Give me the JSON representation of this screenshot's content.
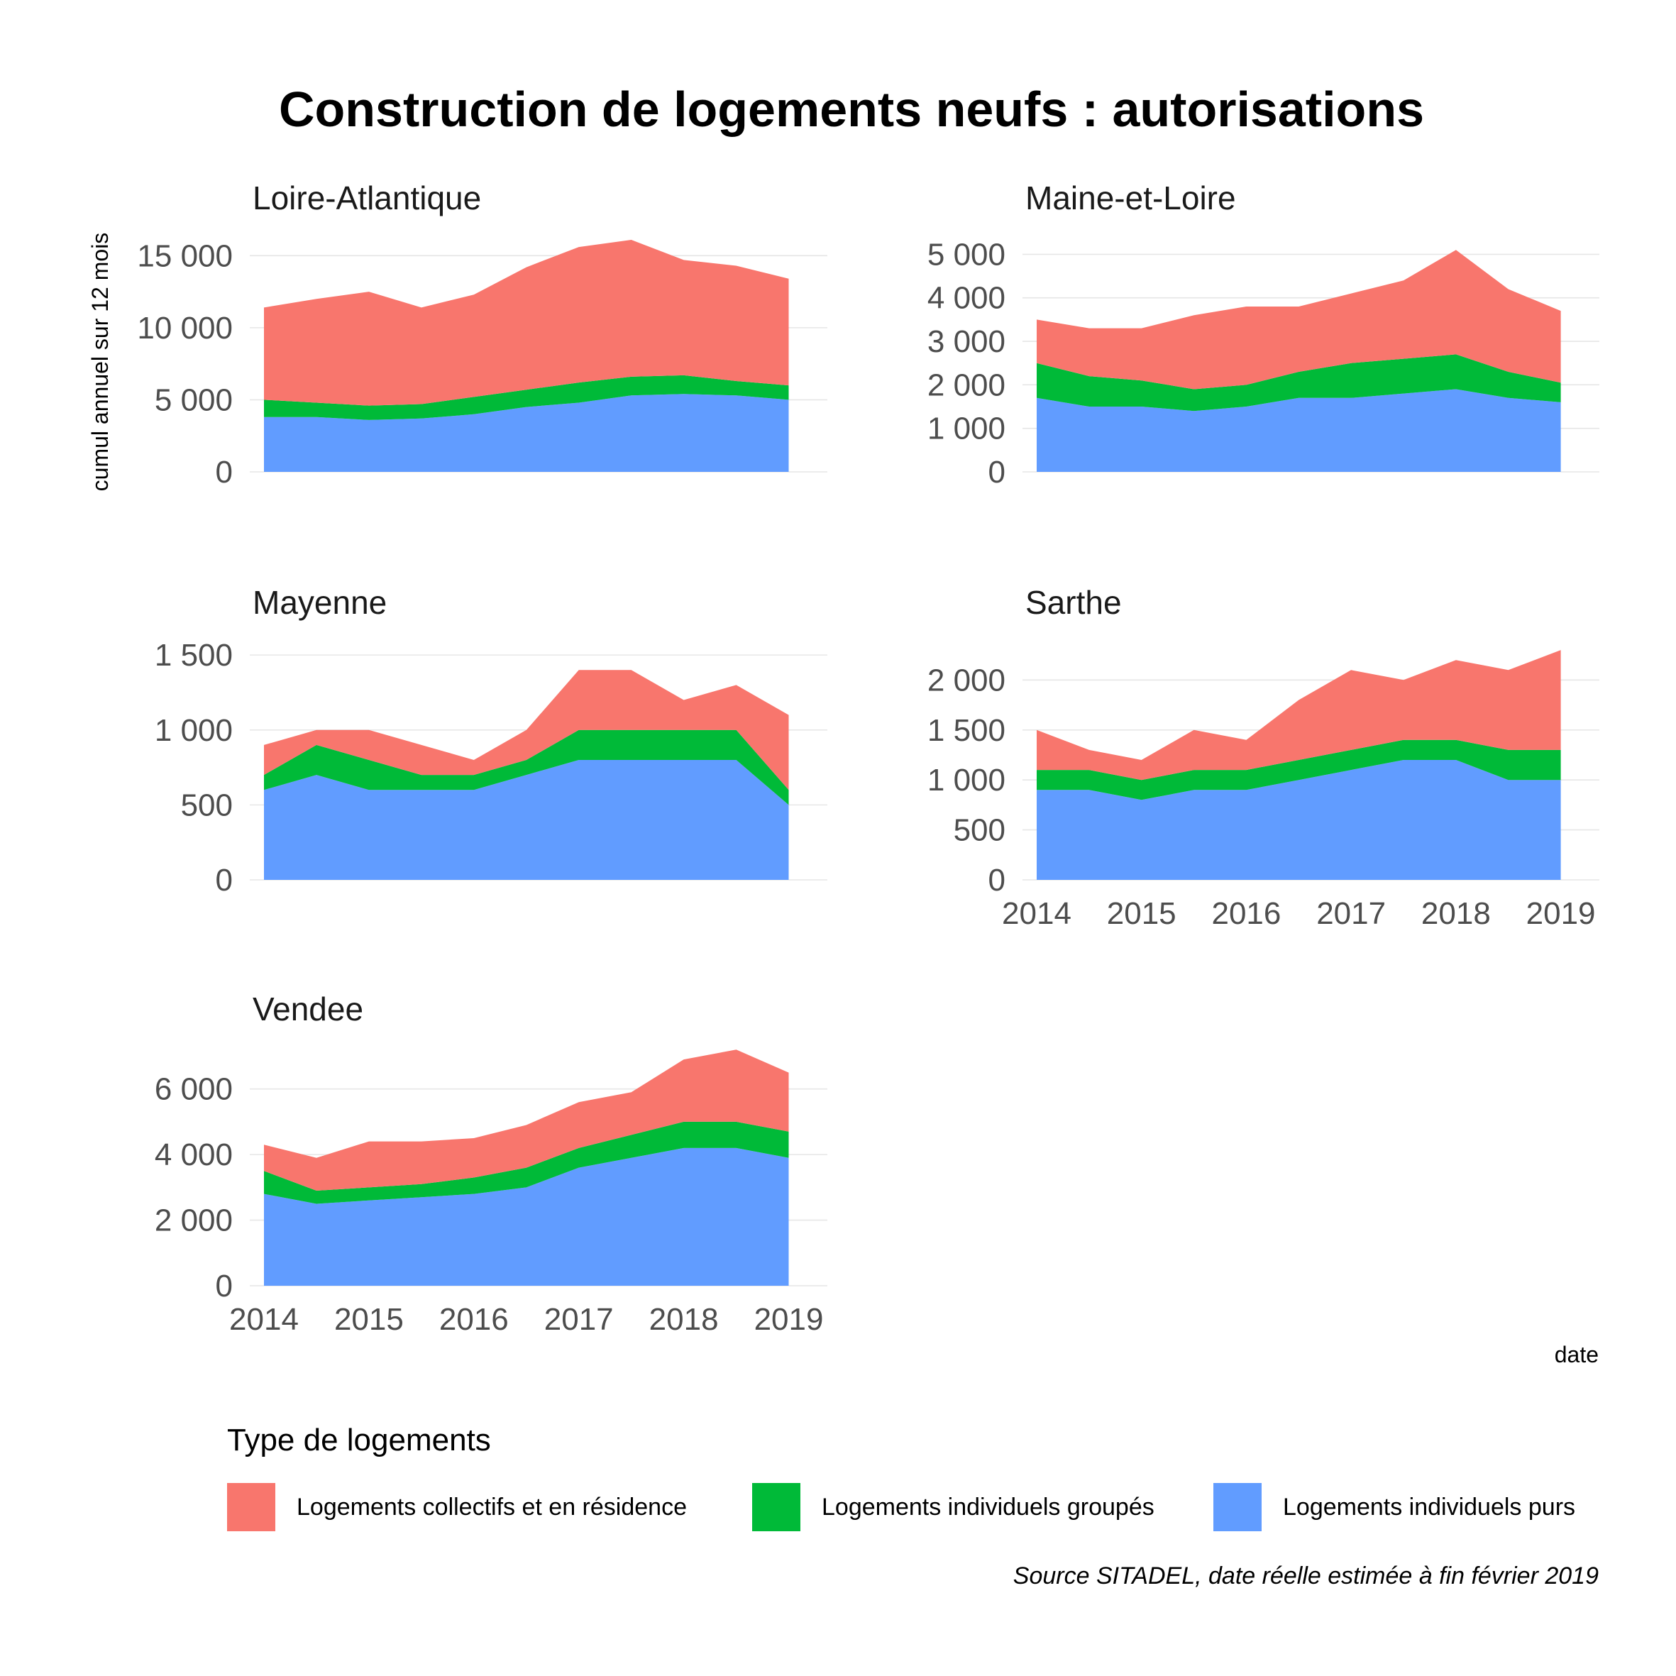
{
  "chart_data": {
    "type": "area",
    "stacked": true,
    "title": "Construction de logements neufs : autorisations",
    "xlabel": "date",
    "ylabel": "cumul annuel sur 12 mois",
    "x_ticks": [
      "2014",
      "2015",
      "2016",
      "2017",
      "2018",
      "2019"
    ],
    "x_range": [
      2014.0,
      2019.1
    ],
    "legend": {
      "title": "Type de logements",
      "position": "bottom",
      "items": [
        {
          "name": "Logements collectifs et en résidence",
          "color": "#F8766D"
        },
        {
          "name": "Logements individuels groupés",
          "color": "#00BA38"
        },
        {
          "name": "Logements individuels purs",
          "color": "#619CFF"
        }
      ]
    },
    "caption": "Source SITADEL, date réelle estimée à fin février 2019",
    "grid": true,
    "panels": [
      {
        "name": "Loire-Atlantique",
        "ylim": [
          0,
          16000
        ],
        "y_ticks": [
          {
            "value": 0,
            "label": "0"
          },
          {
            "value": 5000,
            "label": "5 000"
          },
          {
            "value": 10000,
            "label": "10 000"
          },
          {
            "value": 15000,
            "label": "15 000"
          }
        ],
        "show_x_ticks": false,
        "x": [
          2014.0,
          2014.5,
          2015.0,
          2015.5,
          2016.0,
          2016.5,
          2017.0,
          2017.5,
          2018.0,
          2018.5,
          2019.0
        ],
        "series": [
          {
            "name": "Logements individuels purs",
            "values": [
              3800,
              3800,
              3600,
              3700,
              4000,
              4500,
              4800,
              5300,
              5400,
              5300,
              5000
            ]
          },
          {
            "name": "Logements individuels groupés",
            "values": [
              1200,
              1000,
              1000,
              1000,
              1200,
              1200,
              1400,
              1300,
              1300,
              1000,
              1000
            ]
          },
          {
            "name": "Logements collectifs et en résidence",
            "values": [
              6400,
              7200,
              7900,
              6700,
              7100,
              8500,
              9400,
              9500,
              8000,
              8000,
              7400
            ]
          }
        ]
      },
      {
        "name": "Maine-et-Loire",
        "ylim": [
          0,
          5300
        ],
        "y_ticks": [
          {
            "value": 0,
            "label": "0"
          },
          {
            "value": 1000,
            "label": "1 000"
          },
          {
            "value": 2000,
            "label": "2 000"
          },
          {
            "value": 3000,
            "label": "3 000"
          },
          {
            "value": 4000,
            "label": "4 000"
          },
          {
            "value": 5000,
            "label": "5 000"
          }
        ],
        "show_x_ticks": false,
        "x": [
          2014.0,
          2014.5,
          2015.0,
          2015.5,
          2016.0,
          2016.5,
          2017.0,
          2017.5,
          2018.0,
          2018.5,
          2019.0
        ],
        "series": [
          {
            "name": "Logements individuels purs",
            "values": [
              1700,
              1500,
              1500,
              1400,
              1500,
              1700,
              1700,
              1800,
              1900,
              1700,
              1600
            ]
          },
          {
            "name": "Logements individuels groupés",
            "values": [
              800,
              700,
              600,
              500,
              500,
              600,
              800,
              800,
              800,
              600,
              450
            ]
          },
          {
            "name": "Logements collectifs et en résidence",
            "values": [
              1000,
              1100,
              1200,
              1700,
              1800,
              1500,
              1600,
              1800,
              2400,
              1900,
              1650
            ]
          }
        ]
      },
      {
        "name": "Mayenne",
        "ylim": [
          0,
          1600
        ],
        "y_ticks": [
          {
            "value": 0,
            "label": "0"
          },
          {
            "value": 500,
            "label": "500"
          },
          {
            "value": 1000,
            "label": "1 000"
          },
          {
            "value": 1500,
            "label": "1 500"
          }
        ],
        "show_x_ticks": false,
        "x": [
          2014.0,
          2014.5,
          2015.0,
          2015.5,
          2016.0,
          2016.5,
          2017.0,
          2017.5,
          2018.0,
          2018.5,
          2019.0
        ],
        "series": [
          {
            "name": "Logements individuels purs",
            "values": [
              600,
              700,
              600,
              600,
              600,
              700,
              800,
              800,
              800,
              800,
              500
            ]
          },
          {
            "name": "Logements individuels groupés",
            "values": [
              100,
              200,
              200,
              100,
              100,
              100,
              200,
              200,
              200,
              200,
              100
            ]
          },
          {
            "name": "Logements collectifs et en résidence",
            "values": [
              200,
              100,
              200,
              200,
              100,
              200,
              400,
              400,
              200,
              300,
              500
            ]
          }
        ]
      },
      {
        "name": "Sarthe",
        "ylim": [
          0,
          2400
        ],
        "y_ticks": [
          {
            "value": 0,
            "label": "0"
          },
          {
            "value": 500,
            "label": "500"
          },
          {
            "value": 1000,
            "label": "1 000"
          },
          {
            "value": 1500,
            "label": "1 500"
          },
          {
            "value": 2000,
            "label": "2 000"
          }
        ],
        "show_x_ticks": true,
        "x": [
          2014.0,
          2014.5,
          2015.0,
          2015.5,
          2016.0,
          2016.5,
          2017.0,
          2017.5,
          2018.0,
          2018.5,
          2019.0
        ],
        "series": [
          {
            "name": "Logements individuels purs",
            "values": [
              900,
              900,
              800,
              900,
              900,
              1000,
              1100,
              1200,
              1200,
              1000,
              1000
            ]
          },
          {
            "name": "Logements individuels groupés",
            "values": [
              200,
              200,
              200,
              200,
              200,
              200,
              200,
              200,
              200,
              300,
              300
            ]
          },
          {
            "name": "Logements collectifs et en résidence",
            "values": [
              400,
              200,
              200,
              400,
              300,
              600,
              800,
              600,
              800,
              800,
              1000
            ]
          }
        ]
      },
      {
        "name": "Vendee",
        "ylim": [
          0,
          7400
        ],
        "y_ticks": [
          {
            "value": 0,
            "label": "0"
          },
          {
            "value": 2000,
            "label": "2 000"
          },
          {
            "value": 4000,
            "label": "4 000"
          },
          {
            "value": 6000,
            "label": "6 000"
          }
        ],
        "show_x_ticks": true,
        "x": [
          2014.0,
          2014.5,
          2015.0,
          2015.5,
          2016.0,
          2016.5,
          2017.0,
          2017.5,
          2018.0,
          2018.5,
          2019.0
        ],
        "series": [
          {
            "name": "Logements individuels purs",
            "values": [
              2800,
              2500,
              2600,
              2700,
              2800,
              3000,
              3600,
              3900,
              4200,
              4200,
              3900
            ]
          },
          {
            "name": "Logements individuels groupés",
            "values": [
              700,
              400,
              400,
              400,
              500,
              600,
              600,
              700,
              800,
              800,
              800
            ]
          },
          {
            "name": "Logements collectifs et en résidence",
            "values": [
              800,
              1000,
              1400,
              1300,
              1200,
              1300,
              1400,
              1300,
              1900,
              2200,
              1800
            ]
          }
        ]
      }
    ]
  }
}
